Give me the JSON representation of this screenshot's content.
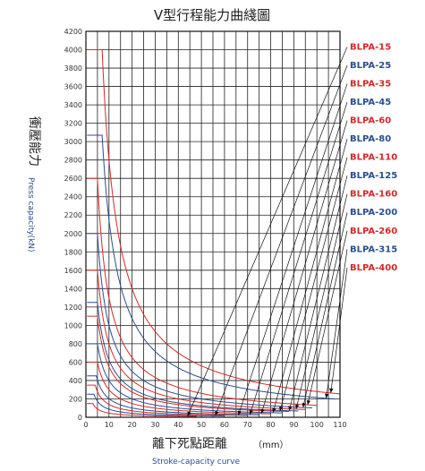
{
  "chart_data": {
    "type": "line",
    "title": "V型行程能力曲綫圖",
    "ylabel": "衝壓能力",
    "ylabel_en": "Press capacity(kN)",
    "xlabel": "離下死點距離",
    "xlabel_unit": "（mm）",
    "xlabel_en": "Stroke-capacity curve",
    "xlim": [
      0,
      110
    ],
    "ylim": [
      0,
      4200
    ],
    "x_ticks": [
      0,
      10,
      20,
      30,
      40,
      50,
      60,
      70,
      80,
      90,
      100,
      110
    ],
    "y_ticks": [
      0,
      200,
      400,
      600,
      800,
      1000,
      1200,
      1400,
      1600,
      1800,
      2000,
      2200,
      2400,
      2600,
      2800,
      3000,
      3200,
      3400,
      3600,
      3800,
      4000,
      4200
    ],
    "grid": true,
    "legend_position": "right",
    "colors": {
      "red": "#d42a2a",
      "blue": "#2a4f8f",
      "black": "#111111"
    },
    "series": [
      {
        "name": "BLPA-15",
        "color": "red",
        "max": 150,
        "flat_end": 3,
        "x_end": 48,
        "label_y": 4000
      },
      {
        "name": "BLPA-25",
        "color": "blue",
        "max": 250,
        "flat_end": 3.5,
        "x_end": 60,
        "label_y": 3800
      },
      {
        "name": "BLPA-35",
        "color": "red",
        "max": 350,
        "flat_end": 4,
        "x_end": 70,
        "label_y": 3600
      },
      {
        "name": "BLPA-45",
        "color": "blue",
        "max": 450,
        "flat_end": 4.5,
        "x_end": 75,
        "label_y": 3400
      },
      {
        "name": "BLPA-60",
        "color": "red",
        "max": 600,
        "flat_end": 5,
        "x_end": 80,
        "label_y": 3200
      },
      {
        "name": "BLPA-80",
        "color": "blue",
        "max": 800,
        "flat_end": 5,
        "x_end": 85,
        "label_y": 3000
      },
      {
        "name": "BLPA-110",
        "color": "red",
        "max": 1100,
        "flat_end": 5,
        "x_end": 88,
        "label_y": 2800
      },
      {
        "name": "BLPA-125",
        "color": "blue",
        "max": 1250,
        "flat_end": 5,
        "x_end": 92,
        "label_y": 2600
      },
      {
        "name": "BLPA-160",
        "color": "red",
        "max": 1600,
        "flat_end": 5,
        "x_end": 95,
        "label_y": 2400
      },
      {
        "name": "BLPA-200",
        "color": "blue",
        "max": 2000,
        "flat_end": 5,
        "x_end": 98,
        "label_y": 2200
      },
      {
        "name": "BLPA-260",
        "color": "red",
        "max": 2600,
        "flat_end": 5,
        "x_end": 100,
        "label_y": 2000
      },
      {
        "name": "BLPA-315",
        "color": "blue",
        "max": 3070,
        "flat_end": 7,
        "x_end": 108,
        "label_y": 1800
      },
      {
        "name": "BLPA-400",
        "color": "red",
        "max": 4000,
        "flat_end": 7,
        "x_end": 110,
        "label_y": 1600
      }
    ]
  }
}
